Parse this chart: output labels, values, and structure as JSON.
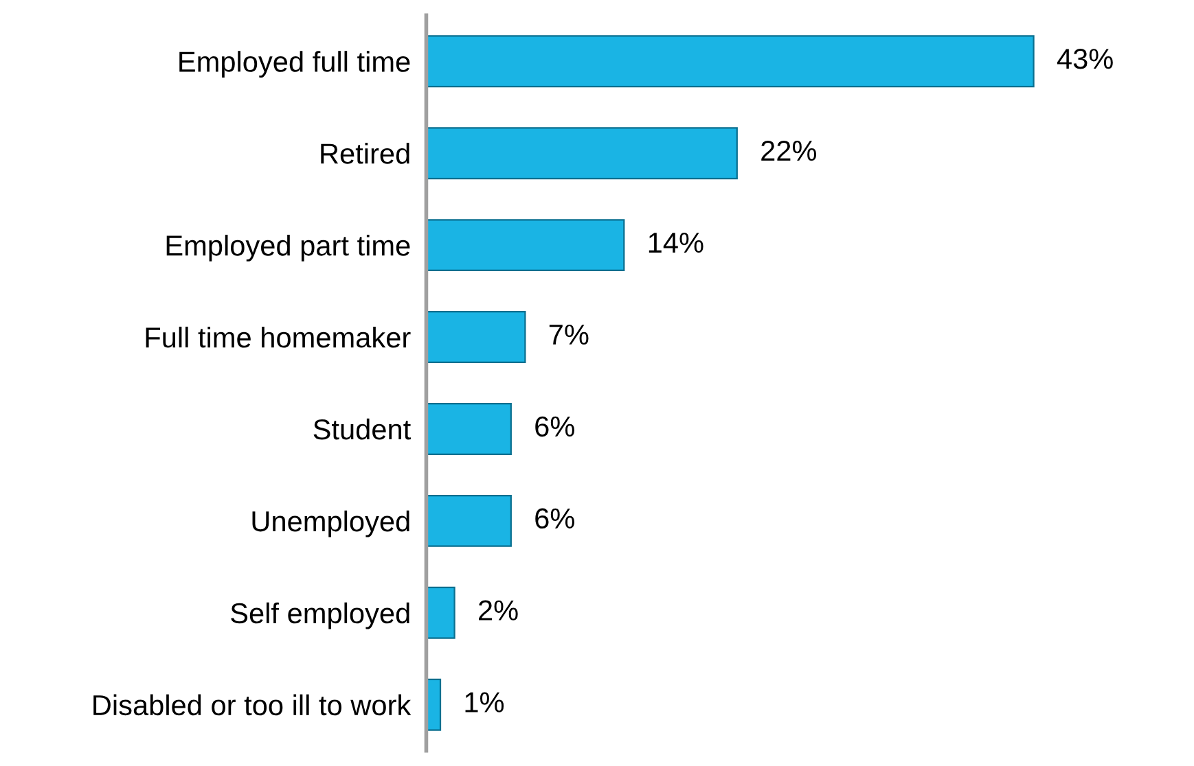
{
  "chart_data": {
    "type": "bar",
    "orientation": "horizontal",
    "categories": [
      "Employed full time",
      "Retired",
      "Employed part time",
      "Full time homemaker",
      "Student",
      "Unemployed",
      "Self employed",
      "Disabled or too ill to work"
    ],
    "values": [
      43,
      22,
      14,
      7,
      6,
      6,
      2,
      1
    ],
    "value_labels": [
      "43%",
      "22%",
      "14%",
      "7%",
      "6%",
      "6%",
      "2%",
      "1%"
    ],
    "color": "#1ab4e4",
    "grid": false,
    "legend": false
  }
}
